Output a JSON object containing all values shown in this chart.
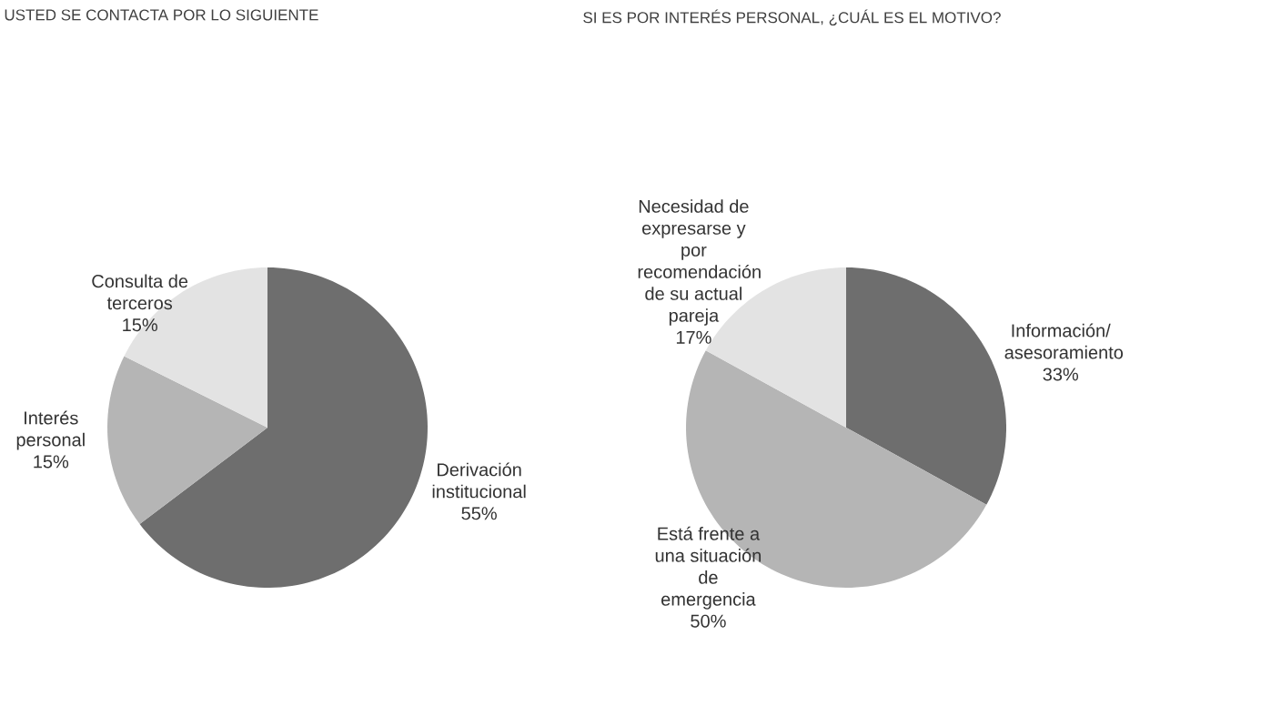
{
  "chart_data": [
    {
      "type": "pie",
      "title": "USTED SE CONTACTA POR LO SIGUIENTE",
      "categories": [
        "Derivación institucional",
        "Interés personal",
        "Consulta de terceros"
      ],
      "values": [
        55,
        15,
        15
      ],
      "value_labels": [
        "55%",
        "15%",
        "15%"
      ],
      "colors": [
        "#6e6e6e",
        "#b5b5b5",
        "#e3e3e3"
      ]
    },
    {
      "type": "pie",
      "title": "SI ES POR INTERÉS PERSONAL, ¿CUÁL ES EL MOTIVO?",
      "categories": [
        "Información/ asesoramiento",
        "Está frente a una situación de emergencia",
        "Necesidad de expresarse y por recomendación de su actual pareja"
      ],
      "values": [
        33,
        50,
        17
      ],
      "value_labels": [
        "33%",
        "50%",
        "17%"
      ],
      "colors": [
        "#6e6e6e",
        "#b5b5b5",
        "#e3e3e3"
      ]
    }
  ]
}
